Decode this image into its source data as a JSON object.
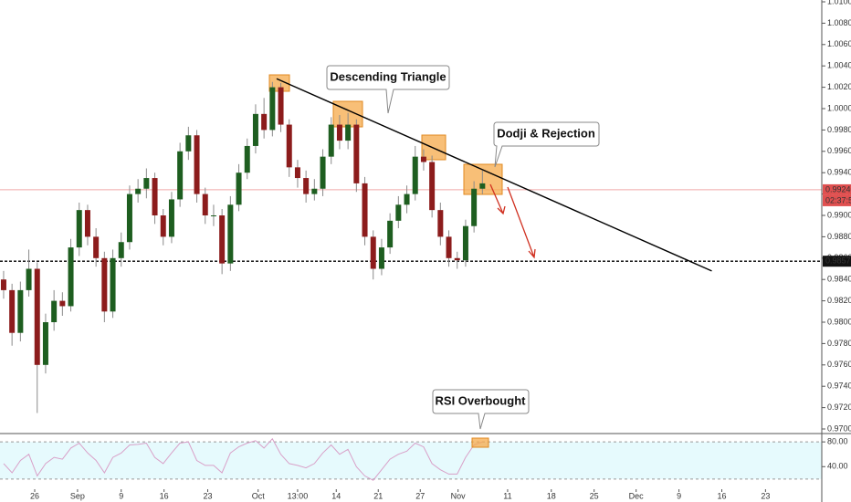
{
  "chart_data": {
    "type": "candlestick",
    "ylim": [
      0.97,
      1.01
    ],
    "yticks": [
      {
        "value": 0.97,
        "label": "0.97000"
      },
      {
        "value": 0.972,
        "label": "0.97200"
      },
      {
        "value": 0.974,
        "label": "0.97400"
      },
      {
        "value": 0.976,
        "label": "0.97600"
      },
      {
        "value": 0.978,
        "label": "0.97800"
      },
      {
        "value": 0.98,
        "label": "0.98000"
      },
      {
        "value": 0.982,
        "label": "0.98200"
      },
      {
        "value": 0.984,
        "label": "0.98400"
      },
      {
        "value": 0.986,
        "label": "0.98600"
      },
      {
        "value": 0.988,
        "label": "0.98800"
      },
      {
        "value": 0.99,
        "label": "0.99000"
      },
      {
        "value": 0.992,
        "label": "0.99200"
      },
      {
        "value": 0.994,
        "label": "0.99400"
      },
      {
        "value": 0.996,
        "label": "0.99600"
      },
      {
        "value": 0.998,
        "label": "0.99800"
      },
      {
        "value": 1.0,
        "label": "1.00000"
      },
      {
        "value": 1.002,
        "label": "1.00200"
      },
      {
        "value": 1.004,
        "label": "1.00400"
      },
      {
        "value": 1.006,
        "label": "1.00600"
      },
      {
        "value": 1.008,
        "label": "1.00800"
      },
      {
        "value": 1.01,
        "label": "1.01000"
      }
    ],
    "xlim": [
      -0.43,
      97.4
    ],
    "xticks": [
      {
        "value": 3.7,
        "label": "26"
      },
      {
        "value": 8.8,
        "label": "Sep"
      },
      {
        "value": 14.0,
        "label": "9"
      },
      {
        "value": 19.1,
        "label": "16"
      },
      {
        "value": 24.3,
        "label": "23"
      },
      {
        "value": 30.3,
        "label": "Oct"
      },
      {
        "value": 35.0,
        "label": "13:00"
      },
      {
        "value": 39.6,
        "label": "14"
      },
      {
        "value": 44.6,
        "label": "21"
      },
      {
        "value": 49.6,
        "label": "27"
      },
      {
        "value": 54.1,
        "label": "Nov"
      },
      {
        "value": 60.0,
        "label": "11"
      },
      {
        "value": 65.2,
        "label": "18"
      },
      {
        "value": 70.3,
        "label": "25"
      },
      {
        "value": 75.3,
        "label": "Dec"
      },
      {
        "value": 80.4,
        "label": "9"
      },
      {
        "value": 85.5,
        "label": "16"
      },
      {
        "value": 90.7,
        "label": "23"
      }
    ],
    "up_color": "#1e5e20",
    "down_color": "#8c1c1c",
    "open": [
      0.984,
      0.983,
      0.979,
      0.983,
      0.985,
      0.976,
      0.98,
      0.982,
      0.9815,
      0.987,
      0.9905,
      0.988,
      0.986,
      0.981,
      0.986,
      0.9875,
      0.992,
      0.9925,
      0.9935,
      0.99,
      0.988,
      0.9915,
      0.996,
      0.9975,
      0.992,
      0.99,
      0.99,
      0.9855,
      0.991,
      0.994,
      0.9965,
      0.9995,
      0.998,
      1.002,
      0.9985,
      0.9945,
      0.9935,
      0.992,
      0.9925,
      0.9955,
      0.9985,
      0.997,
      0.9985,
      0.993,
      0.988,
      0.985,
      0.987,
      0.9895,
      0.991,
      0.992,
      0.9955,
      0.995,
      0.9905,
      0.988,
      0.986,
      0.9858,
      0.989,
      0.9925
    ],
    "high": [
      0.9848,
      0.9836,
      0.9838,
      0.9868,
      0.9856,
      0.9808,
      0.983,
      0.9828,
      0.9878,
      0.9912,
      0.991,
      0.9888,
      0.9866,
      0.9868,
      0.9884,
      0.9928,
      0.9934,
      0.9944,
      0.994,
      0.9906,
      0.9922,
      0.9968,
      0.9983,
      0.998,
      0.9926,
      0.991,
      0.9906,
      0.9918,
      0.9948,
      0.9972,
      1.0004,
      1.001,
      1.0025,
      1.0024,
      0.999,
      0.9952,
      0.9942,
      0.9934,
      0.9962,
      0.9992,
      0.9994,
      0.9996,
      0.999,
      0.9936,
      0.9886,
      0.9878,
      0.9902,
      0.9918,
      0.9928,
      0.9965,
      0.9962,
      0.9956,
      0.9912,
      0.9886,
      0.9866,
      0.9896,
      0.9932,
      0.9942
    ],
    "low": [
      0.9822,
      0.9778,
      0.9782,
      0.9824,
      0.9715,
      0.9752,
      0.9792,
      0.9806,
      0.981,
      0.9862,
      0.9872,
      0.9852,
      0.98,
      0.9804,
      0.9852,
      0.9868,
      0.9912,
      0.9916,
      0.9892,
      0.9872,
      0.9874,
      0.9908,
      0.9952,
      0.9912,
      0.9892,
      0.989,
      0.9845,
      0.9848,
      0.9904,
      0.9934,
      0.9958,
      0.9972,
      0.9974,
      0.9978,
      0.9936,
      0.9926,
      0.9912,
      0.9914,
      0.9918,
      0.9948,
      0.9962,
      0.9962,
      0.9922,
      0.9872,
      0.984,
      0.9844,
      0.9864,
      0.9888,
      0.9902,
      0.9914,
      0.9942,
      0.9898,
      0.9872,
      0.9852,
      0.985,
      0.9852,
      0.9884,
      0.992
    ],
    "close": [
      0.983,
      0.979,
      0.983,
      0.985,
      0.976,
      0.98,
      0.982,
      0.9815,
      0.987,
      0.9905,
      0.988,
      0.986,
      0.981,
      0.986,
      0.9875,
      0.992,
      0.9925,
      0.9935,
      0.99,
      0.988,
      0.9915,
      0.996,
      0.9975,
      0.992,
      0.99,
      0.99,
      0.9855,
      0.991,
      0.994,
      0.9965,
      0.9995,
      0.998,
      1.002,
      0.9985,
      0.9945,
      0.9935,
      0.992,
      0.9925,
      0.9955,
      0.9985,
      0.997,
      0.9985,
      0.993,
      0.988,
      0.985,
      0.987,
      0.9895,
      0.991,
      0.992,
      0.9955,
      0.995,
      0.9905,
      0.988,
      0.986,
      0.9858,
      0.989,
      0.9925,
      0.993
    ],
    "trendline": {
      "x": [
        32.5,
        84.3
      ],
      "y": [
        1.0028,
        0.9848
      ]
    },
    "support": {
      "value": 0.98571,
      "label": "0.98571"
    },
    "current_price": {
      "value": 0.9924,
      "label": "0.99240",
      "countdown": "02:37:59"
    },
    "rsi": {
      "ylim": [
        5,
        92
      ],
      "yticks": [
        {
          "value": 80,
          "label": "80.00"
        },
        {
          "value": 40,
          "label": "40.00"
        }
      ],
      "band": [
        20,
        80
      ],
      "color": "#d9a0c8",
      "values": [
        45,
        30,
        50,
        60,
        25,
        45,
        55,
        52,
        70,
        78,
        62,
        50,
        30,
        55,
        62,
        75,
        76,
        78,
        55,
        45,
        62,
        78,
        80,
        50,
        42,
        42,
        30,
        62,
        72,
        78,
        82,
        70,
        85,
        60,
        45,
        42,
        38,
        45,
        62,
        75,
        60,
        68,
        40,
        25,
        18,
        35,
        52,
        60,
        65,
        78,
        72,
        45,
        35,
        28,
        28,
        55,
        75,
        80
      ]
    },
    "annotations": [
      "Descending Triangle",
      "Dodji & Rejection",
      "RSI Overbought"
    ]
  }
}
